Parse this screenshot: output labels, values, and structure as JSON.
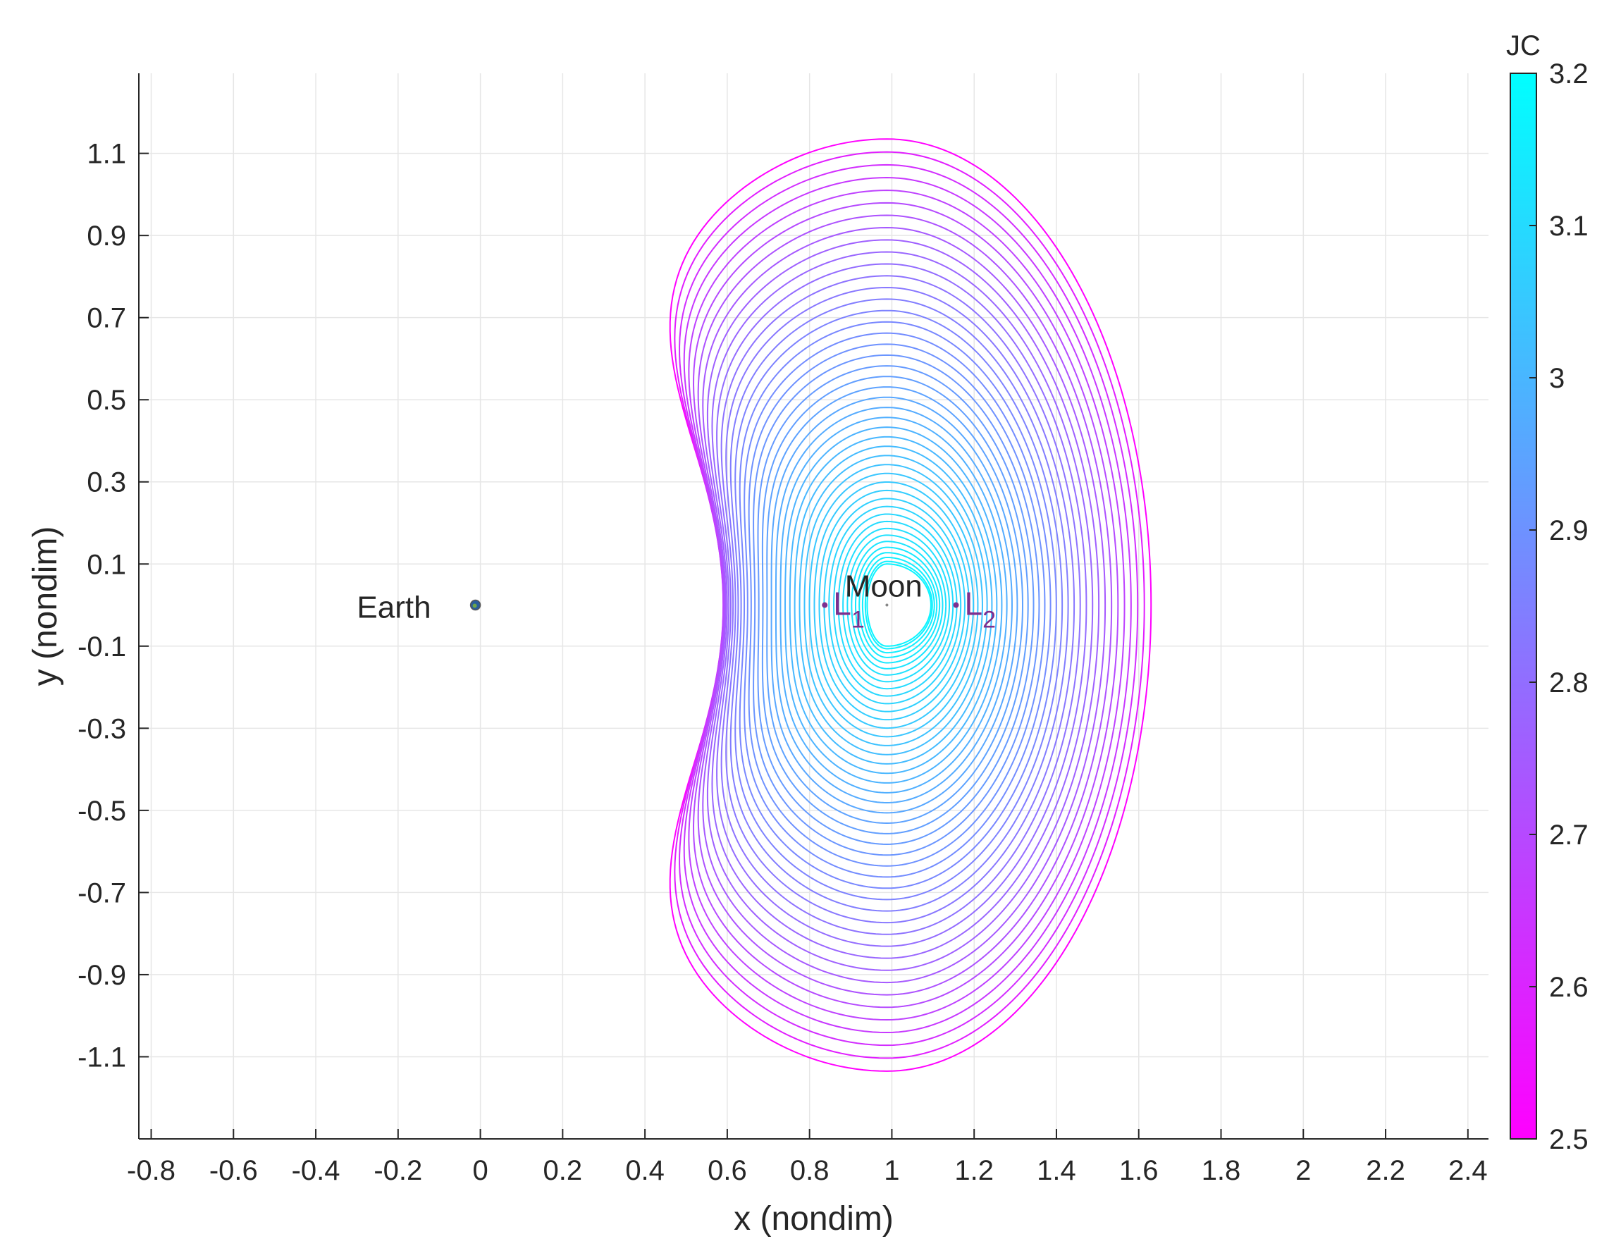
{
  "chart_data": {
    "type": "line",
    "subtype": "contour",
    "xlabel": "x (nondim)",
    "ylabel": "y (nondim)",
    "xlim": [
      -0.83,
      2.45
    ],
    "ylim": [
      -1.3,
      1.295
    ],
    "xticks": [
      -0.8,
      -0.6,
      -0.4,
      -0.2,
      0,
      0.2,
      0.4,
      0.6,
      0.8,
      1,
      1.2,
      1.4,
      1.6,
      1.8,
      2,
      2.2,
      2.4
    ],
    "xtick_labels": [
      "-0.8",
      "-0.6",
      "-0.4",
      "-0.2",
      "0",
      "0.2",
      "0.4",
      "0.6",
      "0.8",
      "1",
      "1.2",
      "1.4",
      "1.6",
      "1.8",
      "2",
      "2.2",
      "2.4"
    ],
    "yticks": [
      1.1,
      0.9,
      0.7,
      0.5,
      0.3,
      0.1,
      -0.1,
      -0.3,
      -0.5,
      -0.7,
      -0.9,
      -1.1
    ],
    "ytick_labels": [
      "1.1",
      "0.9",
      "0.7",
      "0.5",
      "0.3",
      "0.1",
      "-0.1",
      "-0.3",
      "-0.5",
      "-0.7",
      "-0.9",
      "-1.1"
    ],
    "grid": true,
    "colorbar": {
      "label": "JC",
      "range": [
        2.5,
        3.2
      ],
      "ticks": [
        2.5,
        2.6,
        2.7,
        2.8,
        2.9,
        3,
        3.1,
        3.2
      ],
      "tick_labels": [
        "2.5",
        "2.6",
        "2.7",
        "2.8",
        "2.9",
        "3",
        "3.1",
        "3.2"
      ],
      "colormap": "cool (magenta to cyan)",
      "color_low": "#ff00ff",
      "color_high": "#00ffff"
    },
    "contours": {
      "center_x": 0.988,
      "center_y": 0,
      "levels_jc_min": 2.5,
      "levels_jc_max": 3.17,
      "count": 45,
      "outer_extent": {
        "x_min": 0.2,
        "x_max": 1.63,
        "y_min": -1.135,
        "y_max": 1.135
      },
      "inner_extent": {
        "x_min": 0.94,
        "x_max": 1.095,
        "y_min": -0.1,
        "y_max": 0.1
      }
    },
    "annotations": [
      {
        "text": "Earth",
        "x": -0.3,
        "y": -0.01
      },
      {
        "text": "Moon",
        "x": 0.98,
        "y": 0.045
      }
    ],
    "lagrange_points": [
      {
        "name": "L",
        "subscript": "1",
        "x": 0.837,
        "y": 0
      },
      {
        "name": "L",
        "subscript": "2",
        "x": 1.156,
        "y": 0
      }
    ],
    "bodies": [
      {
        "name": "Earth",
        "x": -0.012,
        "y": 0
      },
      {
        "name": "Moon",
        "x": 0.988,
        "y": 0
      }
    ],
    "colors": {
      "lagrange": "#7e2f8e",
      "grid": "#e6e6e6",
      "axis": "#262626"
    }
  }
}
